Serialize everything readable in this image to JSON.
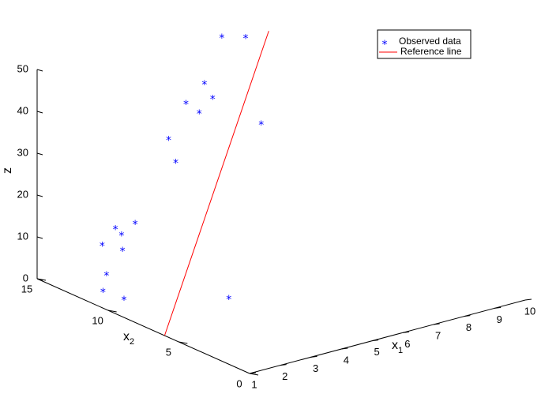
{
  "chart_data": {
    "type": "scatter",
    "projection": "3d",
    "xlabel": "x",
    "xlabel_subscript": "1",
    "ylabel": "x",
    "ylabel_subscript": "2",
    "zlabel": "z",
    "xlim": [
      1,
      10
    ],
    "ylim": [
      0,
      15
    ],
    "zlim": [
      0,
      50
    ],
    "xticks": [
      1,
      2,
      3,
      4,
      5,
      6,
      7,
      8,
      9,
      10
    ],
    "yticks": [
      0,
      5,
      10,
      15
    ],
    "zticks": [
      0,
      10,
      20,
      30,
      40,
      50
    ],
    "grid": false,
    "legend_position": "top-right",
    "series": [
      {
        "name": "Observed data",
        "kind": "scatter",
        "marker": "*",
        "color": "#0000ff",
        "points": [
          {
            "x": 1.6,
            "y": 11.4,
            "z": 5.6
          },
          {
            "x": 1.2,
            "y": 9.3,
            "z": 3.7
          },
          {
            "x": 1.3,
            "y": 11.0,
            "z": 2.8
          },
          {
            "x": 2.4,
            "y": 12.0,
            "z": 9.0
          },
          {
            "x": 2.2,
            "y": 13.0,
            "z": 9.1
          },
          {
            "x": 2.6,
            "y": 12.5,
            "z": 11.5
          },
          {
            "x": 2.4,
            "y": 12.5,
            "z": 13.4
          },
          {
            "x": 3.0,
            "y": 12.4,
            "z": 13.6
          },
          {
            "x": 4.6,
            "y": 13.0,
            "z": 24.2
          },
          {
            "x": 4.6,
            "y": 13.5,
            "z": 28.9
          },
          {
            "x": 5.4,
            "y": 14.0,
            "z": 35.2
          },
          {
            "x": 5.6,
            "y": 13.5,
            "z": 33.3
          },
          {
            "x": 6.0,
            "y": 14.0,
            "z": 38.7
          },
          {
            "x": 5.9,
            "y": 13.2,
            "z": 36.7
          },
          {
            "x": 7.3,
            "y": 13.9,
            "z": 47.4
          },
          {
            "x": 6.8,
            "y": 14.5,
            "z": 47.6
          },
          {
            "x": 6.7,
            "y": 11.5,
            "z": 31.5
          },
          {
            "x": 3.7,
            "y": 7.3,
            "z": 2.0
          },
          {
            "x": 8.1,
            "y": 13.3,
            "z": 60.1
          }
        ]
      },
      {
        "name": "Reference line",
        "kind": "line",
        "color": "#ff0000",
        "points": [
          {
            "x": 1.0,
            "y": 6.0,
            "z": 0.0
          },
          {
            "x": 7.5,
            "y": 12.7,
            "z": 50.0
          }
        ]
      }
    ]
  }
}
